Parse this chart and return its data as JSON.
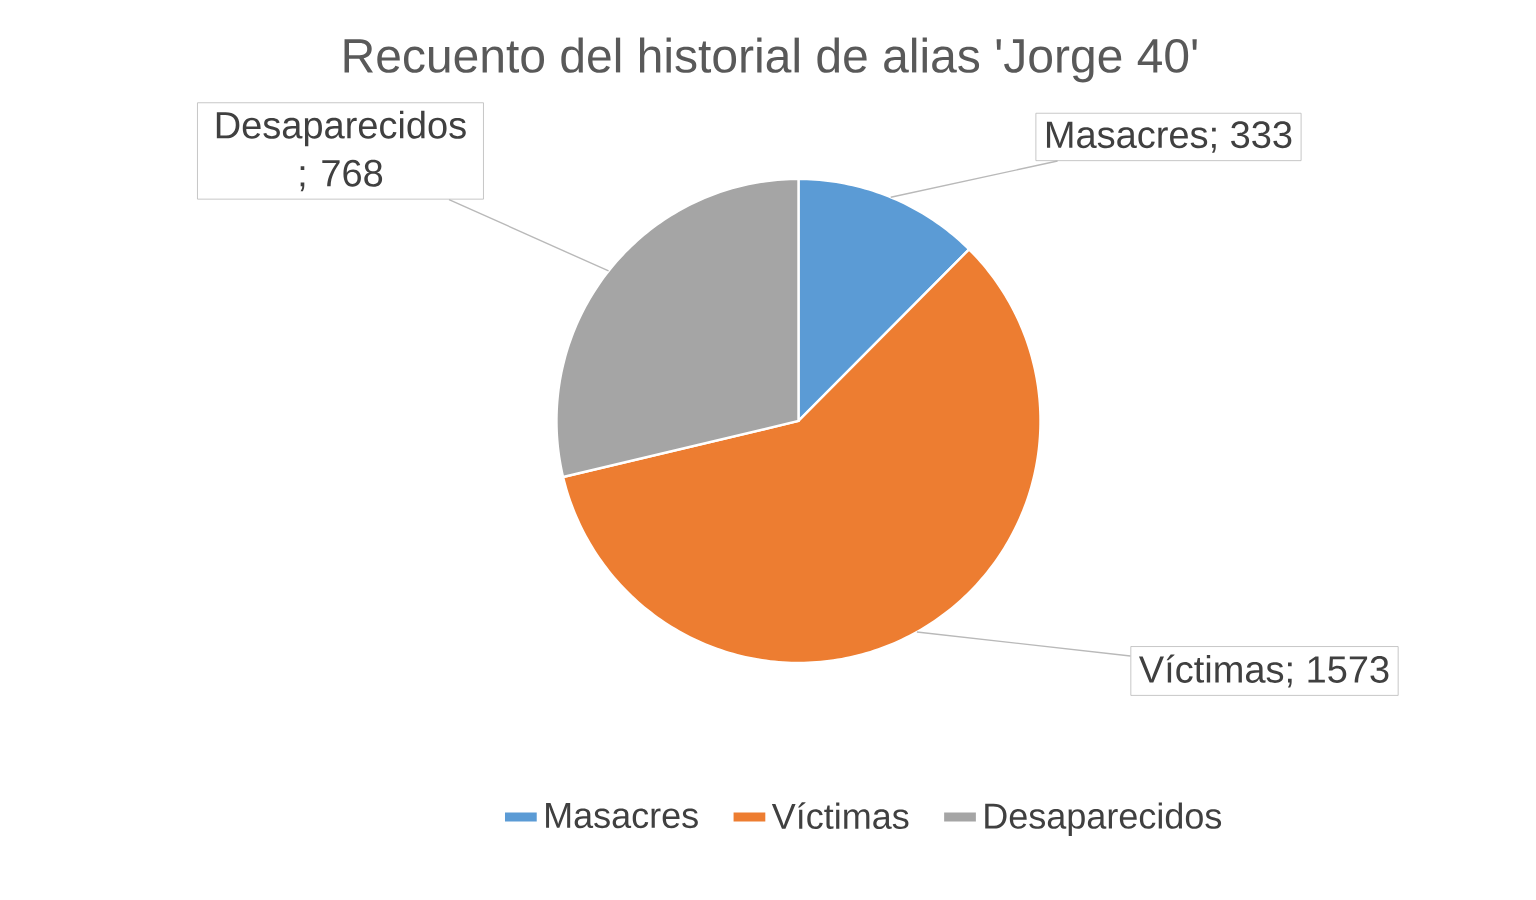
{
  "chart_data": {
    "type": "pie",
    "title": "Recuento del historial de alias 'Jorge 40'",
    "categories": [
      "Masacres",
      "Víctimas",
      "Desaparecidos"
    ],
    "values": [
      333,
      1573,
      768
    ],
    "colors": [
      "#5b9bd5",
      "#ed7d31",
      "#a5a5a5"
    ],
    "value_labels": [
      "Masacres; 333",
      "Víctimas; 1573",
      "Desaparecidos ; 768"
    ],
    "legend": "bottom"
  }
}
